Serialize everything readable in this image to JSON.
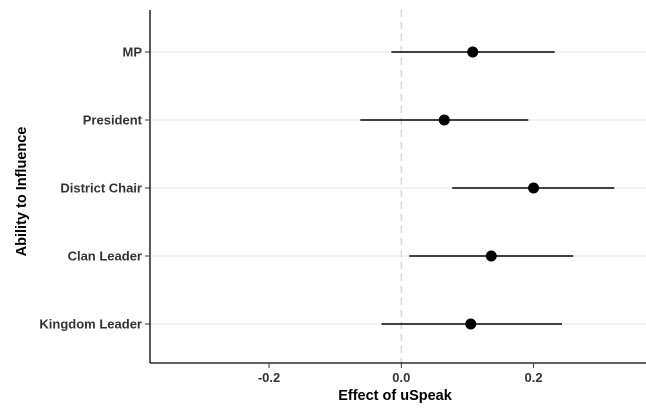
{
  "chart_data": {
    "type": "scatter",
    "subtype": "coefficient-plot",
    "title": "",
    "xlabel": "Effect of uSpeak",
    "ylabel": "Ability to Influence",
    "xlim": [
      -0.38,
      0.37
    ],
    "x_ticks": [
      -0.2,
      0.0,
      0.2
    ],
    "x_tick_labels": [
      "-0.2",
      "0.0",
      "0.2"
    ],
    "reference_line_x": 0,
    "grid": "horizontal-major",
    "legend": "none",
    "categories": [
      "MP",
      "President",
      "District Chair",
      "Clan Leader",
      "Kingdom Leader"
    ],
    "estimates": [
      0.108,
      0.065,
      0.2,
      0.136,
      0.105
    ],
    "ci_low": [
      -0.015,
      -0.062,
      0.077,
      0.012,
      -0.03
    ],
    "ci_high": [
      0.232,
      0.192,
      0.322,
      0.26,
      0.243
    ],
    "colors": {
      "point": "#000000",
      "interval": "#000000",
      "grid": "#e6e6e6",
      "reference_line": "#d9d9d9",
      "axis": "#000000"
    }
  }
}
